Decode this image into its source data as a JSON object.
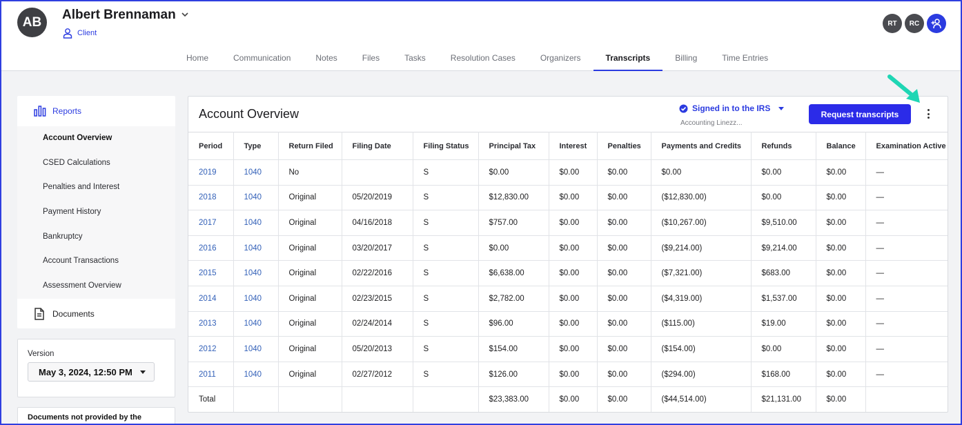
{
  "client": {
    "initials": "AB",
    "name": "Albert Brennaman",
    "role": "Client"
  },
  "team": [
    "RT",
    "RC"
  ],
  "nav": {
    "tabs": [
      "Home",
      "Communication",
      "Notes",
      "Files",
      "Tasks",
      "Resolution Cases",
      "Organizers",
      "Transcripts",
      "Billing",
      "Time Entries"
    ],
    "active": "Transcripts"
  },
  "sidebar": {
    "reports_label": "Reports",
    "items": [
      "Account Overview",
      "CSED Calculations",
      "Penalties and Interest",
      "Payment History",
      "Bankruptcy",
      "Account Transactions",
      "Assessment Overview"
    ],
    "active_item": "Account Overview",
    "documents_label": "Documents"
  },
  "version": {
    "label": "Version",
    "value": "May 3, 2024, 12:50 PM"
  },
  "not_provided": {
    "label": "Documents not provided by the"
  },
  "panel": {
    "title": "Account Overview",
    "irs_status": "Signed in to the IRS",
    "irs_account": "Accounting Linezz...",
    "request_button": "Request transcripts"
  },
  "table": {
    "columns": [
      "Period",
      "Type",
      "Return Filed",
      "Filing Date",
      "Filing Status",
      "Principal Tax",
      "Interest",
      "Penalties",
      "Payments and Credits",
      "Refunds",
      "Balance",
      "Examination Active"
    ],
    "rows": [
      [
        "2019",
        "1040",
        "No",
        "",
        "S",
        "$0.00",
        "$0.00",
        "$0.00",
        "$0.00",
        "$0.00",
        "$0.00",
        "—"
      ],
      [
        "2018",
        "1040",
        "Original",
        "05/20/2019",
        "S",
        "$12,830.00",
        "$0.00",
        "$0.00",
        "($12,830.00)",
        "$0.00",
        "$0.00",
        "—"
      ],
      [
        "2017",
        "1040",
        "Original",
        "04/16/2018",
        "S",
        "$757.00",
        "$0.00",
        "$0.00",
        "($10,267.00)",
        "$9,510.00",
        "$0.00",
        "—"
      ],
      [
        "2016",
        "1040",
        "Original",
        "03/20/2017",
        "S",
        "$0.00",
        "$0.00",
        "$0.00",
        "($9,214.00)",
        "$9,214.00",
        "$0.00",
        "—"
      ],
      [
        "2015",
        "1040",
        "Original",
        "02/22/2016",
        "S",
        "$6,638.00",
        "$0.00",
        "$0.00",
        "($7,321.00)",
        "$683.00",
        "$0.00",
        "—"
      ],
      [
        "2014",
        "1040",
        "Original",
        "02/23/2015",
        "S",
        "$2,782.00",
        "$0.00",
        "$0.00",
        "($4,319.00)",
        "$1,537.00",
        "$0.00",
        "—"
      ],
      [
        "2013",
        "1040",
        "Original",
        "02/24/2014",
        "S",
        "$96.00",
        "$0.00",
        "$0.00",
        "($115.00)",
        "$19.00",
        "$0.00",
        "—"
      ],
      [
        "2012",
        "1040",
        "Original",
        "05/20/2013",
        "S",
        "$154.00",
        "$0.00",
        "$0.00",
        "($154.00)",
        "$0.00",
        "$0.00",
        "—"
      ],
      [
        "2011",
        "1040",
        "Original",
        "02/27/2012",
        "S",
        "$126.00",
        "$0.00",
        "$0.00",
        "($294.00)",
        "$168.00",
        "$0.00",
        "—"
      ]
    ],
    "total": [
      "Total",
      "",
      "",
      "",
      "",
      "$23,383.00",
      "$0.00",
      "$0.00",
      "($44,514.00)",
      "$21,131.00",
      "$0.00",
      ""
    ]
  },
  "colors": {
    "accent": "#2b3be0",
    "link": "#3260b8",
    "annotation": "#1fd6b4"
  }
}
